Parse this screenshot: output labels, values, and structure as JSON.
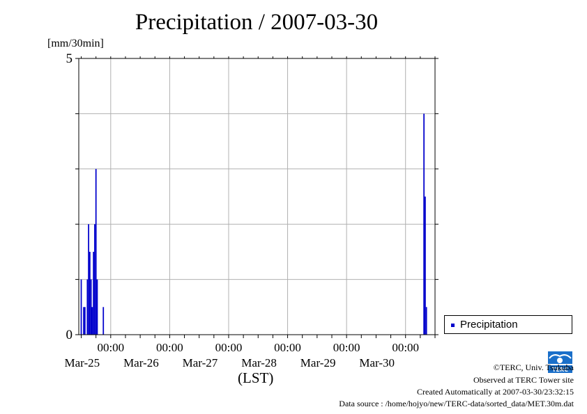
{
  "title": "Precipitation / 2007-03-30",
  "y_unit_label": "[mm/30min]",
  "x_axis_label": "(LST)",
  "legend_label": "Precipitation",
  "series_color": "#0000cc",
  "logo_icon": "terc-logo-icon",
  "logo_text": "TERC",
  "credits": {
    "line1": "©TERC, Univ. Tsukuba",
    "line2": "Observed at TERC Tower site",
    "line3": "Created Automatically at 2007-03-30/23:32:15",
    "line4": "Data source : /home/hojyo/new/TERC-data/sorted_data/MET.30m.dat"
  },
  "chart_data": {
    "type": "bar",
    "title": "Precipitation / 2007-03-30",
    "ylabel": "[mm/30min]",
    "xlabel": "(LST)",
    "ylim": [
      0,
      5
    ],
    "xlim": [
      "2007-03-24T11:00",
      "2007-03-30T12:00"
    ],
    "y_ticks": [
      0,
      5
    ],
    "y_tick_labels": [
      "0",
      "5"
    ],
    "x_ticks": [
      {
        "time": "2007-03-25T00:00",
        "time_label": "00:00",
        "date_label": "Mar-25"
      },
      {
        "time": "2007-03-26T00:00",
        "time_label": "00:00",
        "date_label": "Mar-26"
      },
      {
        "time": "2007-03-27T00:00",
        "time_label": "00:00",
        "date_label": "Mar-27"
      },
      {
        "time": "2007-03-28T00:00",
        "time_label": "00:00",
        "date_label": "Mar-28"
      },
      {
        "time": "2007-03-29T00:00",
        "time_label": "00:00",
        "date_label": "Mar-29"
      },
      {
        "time": "2007-03-30T00:00",
        "time_label": "00:00",
        "date_label": "Mar-30"
      }
    ],
    "grid": true,
    "legend_position": "right",
    "series": [
      {
        "name": "Precipitation",
        "color": "#0000cc",
        "points": [
          {
            "time": "2007-03-24T12:00",
            "value": 1.0
          },
          {
            "time": "2007-03-24T13:00",
            "value": 0.5
          },
          {
            "time": "2007-03-24T13:30",
            "value": 0.5
          },
          {
            "time": "2007-03-24T14:30",
            "value": 1.0
          },
          {
            "time": "2007-03-24T15:00",
            "value": 2.0
          },
          {
            "time": "2007-03-24T15:30",
            "value": 1.5
          },
          {
            "time": "2007-03-24T16:00",
            "value": 1.0
          },
          {
            "time": "2007-03-24T16:30",
            "value": 0.5
          },
          {
            "time": "2007-03-24T17:00",
            "value": 1.5
          },
          {
            "time": "2007-03-24T17:30",
            "value": 2.0
          },
          {
            "time": "2007-03-24T18:00",
            "value": 3.0
          },
          {
            "time": "2007-03-24T18:30",
            "value": 1.0
          },
          {
            "time": "2007-03-24T21:00",
            "value": 0.5
          },
          {
            "time": "2007-03-30T07:30",
            "value": 4.0
          },
          {
            "time": "2007-03-30T08:00",
            "value": 2.5
          },
          {
            "time": "2007-03-30T08:30",
            "value": 0.5
          }
        ]
      }
    ]
  }
}
